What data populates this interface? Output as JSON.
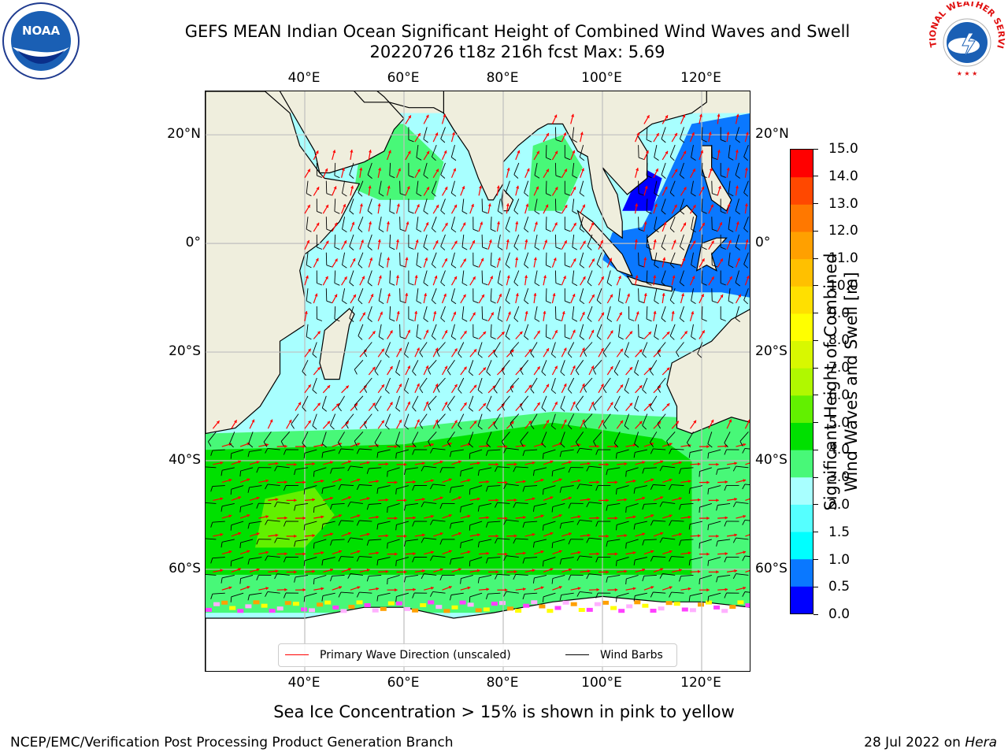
{
  "title": {
    "line1": "GEFS MEAN Indian Ocean Significant Height of Combined Wind Waves and Swell",
    "line2": "20220726 t18z 216h fcst   Max: 5.69"
  },
  "logos": {
    "left": {
      "icon": "noaa-logo",
      "text": "NOAA",
      "ring_text": "NATIONAL OCEANIC AND ATMOSPHERIC ADMINISTRATION · U.S. DEPARTMENT OF COMMERCE"
    },
    "right": {
      "icon": "nws-logo",
      "ring_text": "NATIONAL WEATHER SERVICE"
    }
  },
  "map": {
    "lon_range": [
      20,
      130
    ],
    "lat_range": [
      -79,
      28
    ],
    "lon_ticks_top": [
      "40°E",
      "60°E",
      "80°E",
      "100°E",
      "120°E"
    ],
    "lon_ticks_bottom": [
      "40°E",
      "60°E",
      "80°E",
      "100°E",
      "120°E"
    ],
    "lat_ticks_left": [
      "20°N",
      "0°",
      "20°S",
      "40°S",
      "60°S"
    ],
    "lat_ticks_right": [
      "20°N",
      "0°",
      "20°S",
      "40°S",
      "60°S"
    ],
    "colors": {
      "land": "#efeedd",
      "antarctica": "#ffffff",
      "wave_arrow": "#ff0000",
      "wind_barb": "#000000",
      "grid": "#bfbfbf"
    }
  },
  "legend": {
    "wave_direction": "Primary Wave Direction (unscaled)",
    "wind_barbs": "Wind Barbs"
  },
  "colorbar": {
    "label_line1": "Significant Height of Combined",
    "label_line2": "Wind Waves and Swell [m]",
    "ticks": [
      "0.0",
      "0.5",
      "1.0",
      "1.5",
      "2.0",
      "3.0",
      "4.0",
      "5.0",
      "6.0",
      "7.0",
      "8.0",
      "9.0",
      "10.0",
      "11.0",
      "12.0",
      "13.0",
      "14.0",
      "15.0"
    ],
    "colors": [
      "#0000ff",
      "#0a78ff",
      "#00ffff",
      "#55ffff",
      "#a8ffff",
      "#48f878",
      "#00e000",
      "#62f000",
      "#b0f800",
      "#d8f800",
      "#ffff00",
      "#ffe000",
      "#ffc000",
      "#ffa000",
      "#ff7800",
      "#ff4800",
      "#ff0000"
    ]
  },
  "ice_note": "Sea Ice Concentration > 15% is shown in pink to yellow",
  "footer": {
    "left": "NCEP/EMC/Verification Post Processing Product Generation Branch",
    "right_prefix": "28 Jul 2022 on ",
    "right_machine": "Hera"
  }
}
